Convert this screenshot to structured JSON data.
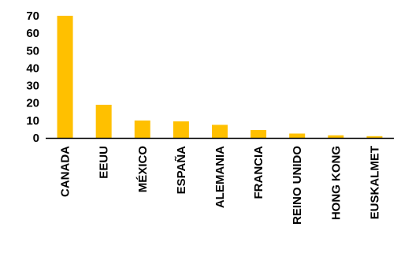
{
  "chart_data": {
    "type": "bar",
    "categories": [
      "CANADA",
      "EEUU",
      "MÉXICO",
      "ESPAÑA",
      "ALEMANIA",
      "FRANCIA",
      "REINO UNIDO",
      "HONG KONG",
      "EUSKALMET"
    ],
    "values": [
      70,
      19,
      10,
      9.5,
      7.5,
      4.5,
      2.5,
      1.5,
      1
    ],
    "yticks": [
      "70",
      "60",
      "50",
      "40",
      "30",
      "20",
      "10",
      "0"
    ],
    "ylim": [
      0,
      70
    ],
    "bar_color": "#FFC000",
    "axis_color": "#000000",
    "grid": false,
    "legend": "none"
  }
}
